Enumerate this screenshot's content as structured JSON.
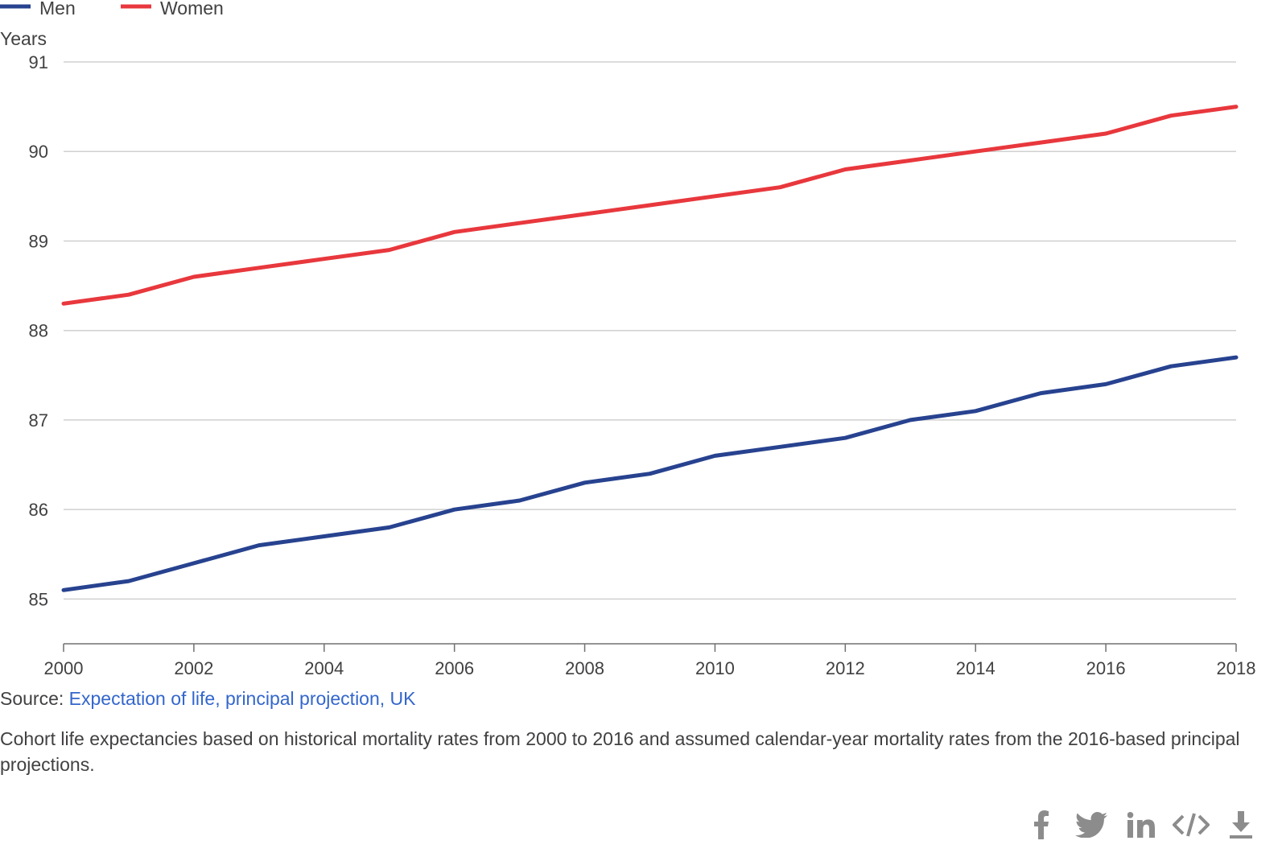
{
  "legend": [
    {
      "label": "Men",
      "color": "#27428f"
    },
    {
      "label": "Women",
      "color": "#e8383d"
    }
  ],
  "y_unit": "Years",
  "source": {
    "prefix": "Source: ",
    "link_text": "Expectation of life, principal projection, UK"
  },
  "note": "Cohort life expectancies based on historical mortality rates from 2000 to 2016 and assumed calendar-year mortality rates from the 2016-based principal projections.",
  "share_icons": [
    "facebook-icon",
    "twitter-icon",
    "linkedin-icon",
    "embed-code-icon",
    "download-icon"
  ],
  "chart_data": {
    "type": "line",
    "title": "",
    "xlabel": "",
    "ylabel": "Years",
    "xlim": [
      2000,
      2018
    ],
    "ylim": [
      84.5,
      91
    ],
    "y_ticks": [
      85,
      86,
      87,
      88,
      89,
      90,
      91
    ],
    "x_ticks": [
      2000,
      2002,
      2004,
      2006,
      2008,
      2010,
      2012,
      2014,
      2016,
      2018
    ],
    "grid": true,
    "legend_position": "top-left",
    "x": [
      2000,
      2001,
      2002,
      2003,
      2004,
      2005,
      2006,
      2007,
      2008,
      2009,
      2010,
      2011,
      2012,
      2013,
      2014,
      2015,
      2016,
      2017,
      2018
    ],
    "series": [
      {
        "name": "Men",
        "color": "#27428f",
        "values": [
          85.1,
          85.2,
          85.4,
          85.6,
          85.7,
          85.8,
          86.0,
          86.1,
          86.3,
          86.4,
          86.6,
          86.7,
          86.8,
          87.0,
          87.1,
          87.3,
          87.4,
          87.6,
          87.7
        ]
      },
      {
        "name": "Women",
        "color": "#e8383d",
        "values": [
          88.3,
          88.4,
          88.6,
          88.7,
          88.8,
          88.9,
          89.1,
          89.2,
          89.3,
          89.4,
          89.5,
          89.6,
          89.8,
          89.9,
          90.0,
          90.1,
          90.2,
          90.4,
          90.5
        ]
      }
    ]
  }
}
